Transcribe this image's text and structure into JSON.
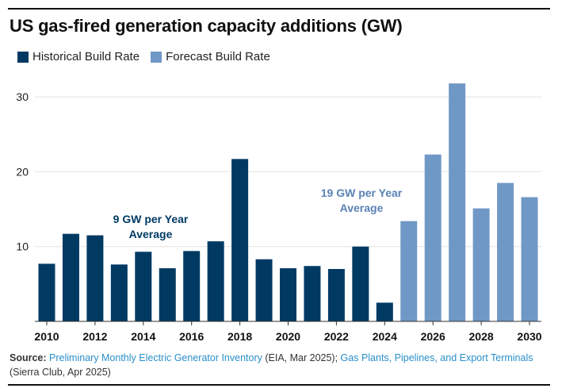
{
  "title": "US gas-fired generation capacity additions (GW)",
  "colors": {
    "historical": "#003a63",
    "forecast": "#7098c6",
    "link": "#2a8fc9"
  },
  "chart_data": {
    "type": "bar",
    "title": "US gas-fired generation capacity additions (GW)",
    "categories": [
      "2010",
      "2011",
      "2012",
      "2013",
      "2014",
      "2015",
      "2016",
      "2017",
      "2018",
      "2019",
      "2020",
      "2021",
      "2022",
      "2023",
      "2024",
      "2025",
      "2026",
      "2027",
      "2028",
      "2029",
      "2030"
    ],
    "series": [
      {
        "name": "Historical Build Rate",
        "values": [
          7.7,
          11.7,
          11.5,
          7.6,
          9.3,
          7.1,
          9.4,
          10.7,
          21.7,
          8.3,
          7.1,
          7.4,
          7.0,
          10.0,
          2.5,
          null,
          null,
          null,
          null,
          null,
          null
        ]
      },
      {
        "name": "Forecast Build Rate",
        "values": [
          null,
          null,
          null,
          null,
          null,
          null,
          null,
          null,
          null,
          null,
          null,
          null,
          null,
          null,
          null,
          13.4,
          22.3,
          31.8,
          15.1,
          18.5,
          16.6
        ]
      }
    ],
    "xticks": [
      "2010",
      "2012",
      "2014",
      "2016",
      "2018",
      "2020",
      "2022",
      "2024",
      "2026",
      "2028",
      "2030"
    ],
    "yticks": [
      "10",
      "20",
      "30"
    ],
    "ylim": [
      0,
      32
    ],
    "grid": "horizontal",
    "legend": "top-left",
    "annotations": [
      {
        "lines": [
          "9 GW per Year",
          "Average"
        ],
        "series": "Historical Build Rate"
      },
      {
        "lines": [
          "19 GW per Year",
          "Average"
        ],
        "series": "Forecast Build Rate"
      }
    ]
  },
  "source": {
    "label": "Source:",
    "link1": "Preliminary Monthly Electric Generator Inventory",
    "text1": " (EIA, Mar 2025); ",
    "link2": "Gas Plants, Pipelines, and Export Terminals",
    "text2": " (Sierra Club, Apr 2025)"
  }
}
